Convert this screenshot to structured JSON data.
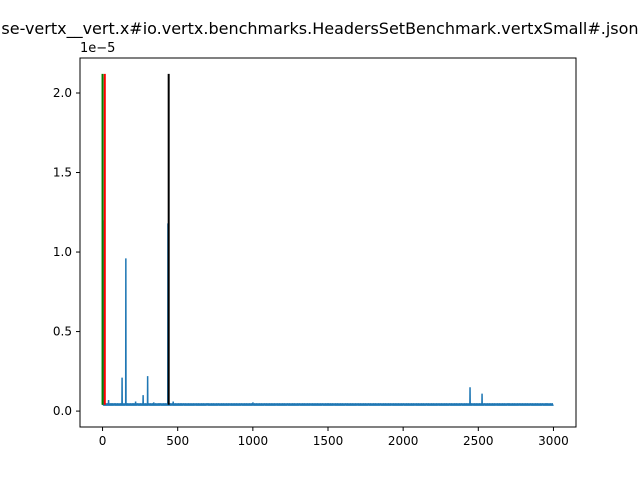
{
  "chart_data": {
    "type": "line",
    "title": "se-vertx__vert.x#io.vertx.benchmarks.HeadersSetBenchmark.vertxSmall#.json",
    "xlabel": "",
    "ylabel": "",
    "y_offset_label": "1e−5",
    "xlim": [
      -150,
      3150
    ],
    "ylim": [
      -1e-06,
      2.22e-05
    ],
    "grid": false,
    "x_ticks": [
      0,
      500,
      1000,
      1500,
      2000,
      2500,
      3000
    ],
    "x_tick_labels": [
      "0",
      "500",
      "1000",
      "1500",
      "2000",
      "2500",
      "3000"
    ],
    "y_ticks": [
      0,
      5e-06,
      1e-05,
      1.5e-05,
      2e-05
    ],
    "y_tick_labels": [
      "0.0",
      "0.5",
      "1.0",
      "1.5",
      "2.0"
    ],
    "series": [
      {
        "color": "#1f77b4",
        "baseline": 3.8e-07,
        "n_points": 3000,
        "spikes": [
          [
            0,
            2.8e-06
          ],
          [
            2,
            2.1e-05
          ],
          [
            4,
            1.2e-05
          ],
          [
            6,
            6e-06
          ],
          [
            10,
            1.5e-06
          ],
          [
            40,
            7e-07
          ],
          [
            60,
            5e-07
          ],
          [
            80,
            5e-07
          ],
          [
            130,
            2.1e-06
          ],
          [
            155,
            9.6e-06
          ],
          [
            200,
            5e-07
          ],
          [
            220,
            6e-07
          ],
          [
            270,
            1e-06
          ],
          [
            300,
            2.2e-06
          ],
          [
            340,
            5e-07
          ],
          [
            380,
            5e-07
          ],
          [
            435,
            1.18e-05
          ],
          [
            470,
            6e-07
          ],
          [
            520,
            5e-07
          ],
          [
            700,
            5e-07
          ],
          [
            1000,
            5e-07
          ],
          [
            1500,
            5e-07
          ],
          [
            2445,
            1.5e-06
          ],
          [
            2525,
            1.1e-06
          ],
          [
            2700,
            5e-07
          ],
          [
            2950,
            5e-07
          ]
        ]
      }
    ],
    "vertical_lines": [
      {
        "x": 0,
        "y0": 4e-07,
        "y1": 2.12e-05,
        "color": "#008000"
      },
      {
        "x": 15,
        "y0": 4e-07,
        "y1": 2.12e-05,
        "color": "#ff0000"
      },
      {
        "x": 440,
        "y0": 4e-07,
        "y1": 2.12e-05,
        "color": "#000000"
      }
    ]
  }
}
